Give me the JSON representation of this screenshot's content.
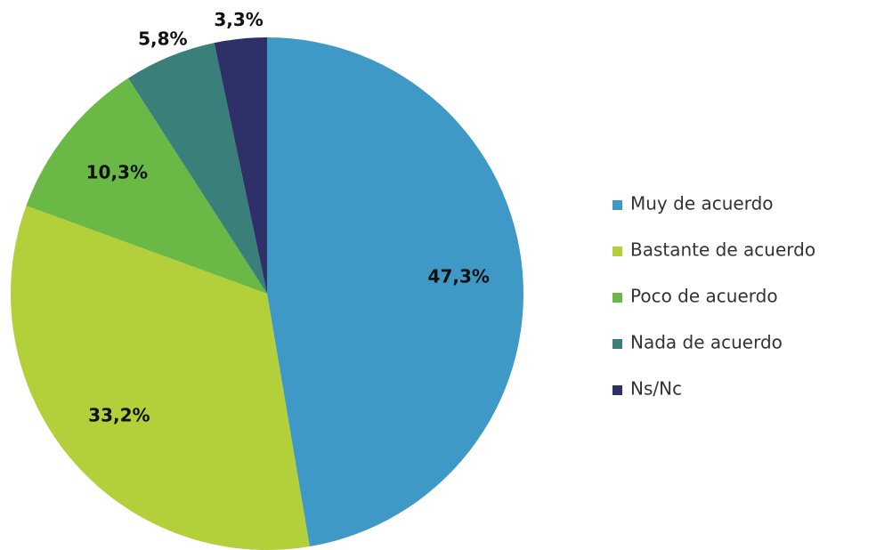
{
  "chart_data": {
    "type": "pie",
    "categories": [
      "Muy de acuerdo",
      "Bastante de acuerdo",
      "Poco de acuerdo",
      "Nada de acuerdo",
      "Ns/Nc"
    ],
    "values": [
      47.3,
      33.2,
      10.3,
      5.8,
      3.3
    ],
    "value_labels": [
      "47,3%",
      "33,2%",
      "10,3%",
      "5,8%",
      "3,3%"
    ],
    "colors": [
      "#3f99c6",
      "#b3cf3a",
      "#6ab845",
      "#3a7f7a",
      "#2e3168"
    ],
    "legend": "right"
  }
}
